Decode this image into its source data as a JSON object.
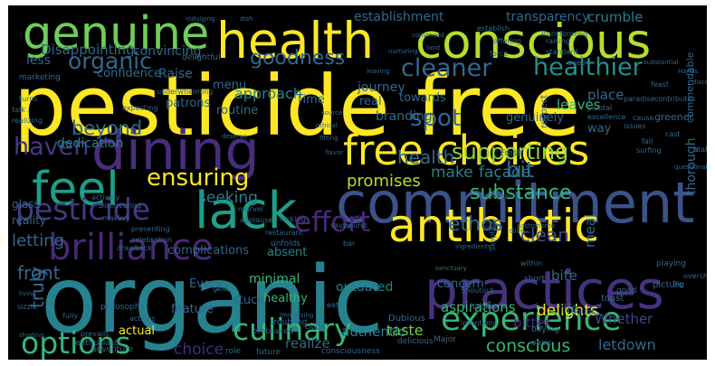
{
  "words": [
    {
      "t": "pesticide free",
      "c": "#fde725"
    },
    {
      "t": "organic",
      "c": "#26828e"
    },
    {
      "t": "commitment",
      "c": "#3b528b"
    },
    {
      "t": "health",
      "c": "#fde725"
    },
    {
      "t": "conscious",
      "c": "#b5de2b"
    },
    {
      "t": "dining",
      "c": "#472d7b"
    },
    {
      "t": "practices",
      "c": "#46327e"
    },
    {
      "t": "antibiotic",
      "c": "#fde725"
    },
    {
      "t": "lack",
      "c": "#1f9e89"
    },
    {
      "t": "free choices",
      "c": "#fde725"
    },
    {
      "t": "genuine",
      "c": "#6ece58"
    },
    {
      "t": "feel",
      "c": "#1f9e89"
    },
    {
      "t": "brilliance",
      "c": "#482878"
    },
    {
      "t": "experience",
      "c": "#35b779"
    },
    {
      "t": "culinary",
      "c": "#35b779"
    },
    {
      "t": "options",
      "c": "#35b779"
    },
    {
      "t": "pesticide",
      "c": "#443983"
    },
    {
      "t": "effort",
      "c": "#482878"
    },
    {
      "t": "ensuring",
      "c": "#fde725"
    },
    {
      "t": "cleaner",
      "c": "#31688e"
    },
    {
      "t": "healthier",
      "c": "#21918c"
    },
    {
      "t": "organic",
      "c": "#31688e"
    },
    {
      "t": "goodness",
      "c": "#31688e"
    },
    {
      "t": "beyond",
      "c": "#31688e"
    },
    {
      "t": "haven",
      "c": "#443983"
    },
    {
      "t": "spot",
      "c": "#31688e"
    },
    {
      "t": "supporting",
      "c": "#90d743"
    },
    {
      "t": "bit",
      "c": "#31688e"
    },
    {
      "t": "health",
      "c": "#31688e"
    },
    {
      "t": "substance",
      "c": "#35b779"
    },
    {
      "t": "seeking",
      "c": "#26828e"
    },
    {
      "t": "promises",
      "c": "#b5de2b"
    },
    {
      "t": "make",
      "c": "#26828e"
    },
    {
      "t": "façade",
      "c": "#26828e"
    },
    {
      "t": "ethos",
      "c": "#31688e"
    },
    {
      "t": "clean",
      "c": "#3e4989"
    },
    {
      "t": "truly",
      "c": "#31688e"
    },
    {
      "t": "front",
      "c": "#31688e"
    },
    {
      "t": "letting",
      "c": "#31688e"
    },
    {
      "t": "conscious",
      "c": "#35b779"
    },
    {
      "t": "letdown",
      "c": "#31688e"
    },
    {
      "t": "delights",
      "c": "#fde725"
    },
    {
      "t": "choice",
      "c": "#472d7b"
    },
    {
      "t": "aspirations",
      "c": "#35b779"
    },
    {
      "t": "bitter",
      "c": "#482878"
    },
    {
      "t": "taste",
      "c": "#6ece58"
    },
    {
      "t": "authentic",
      "c": "#26828e"
    },
    {
      "t": "realize",
      "c": "#31688e"
    },
    {
      "t": "Whether",
      "c": "#3e4989"
    },
    {
      "t": "meal",
      "c": "#31688e"
    },
    {
      "t": "bite",
      "c": "#31688e"
    },
    {
      "t": "outdated",
      "c": "#26828e"
    },
    {
      "t": "minimal",
      "c": "#35b779"
    },
    {
      "t": "approach",
      "c": "#26828e"
    },
    {
      "t": "dedication",
      "c": "#26828e"
    },
    {
      "t": "establishment",
      "c": "#31688e"
    },
    {
      "t": "transparency",
      "c": "#31688e"
    },
    {
      "t": "crumble",
      "c": "#26828e"
    },
    {
      "t": "Disappointing",
      "c": "#31688e"
    },
    {
      "t": "convincing",
      "c": "#31688e"
    },
    {
      "t": "Raise",
      "c": "#31688e"
    },
    {
      "t": "confidence",
      "c": "#31688e"
    },
    {
      "t": "less",
      "c": "#31688e"
    },
    {
      "t": "journey",
      "c": "#31688e"
    },
    {
      "t": "towards",
      "c": "#31688e"
    },
    {
      "t": "branding",
      "c": "#31688e"
    },
    {
      "t": "leaves",
      "c": "#35b779"
    },
    {
      "t": "menu",
      "c": "#31688e"
    },
    {
      "t": "patrons",
      "c": "#31688e"
    },
    {
      "t": "routine",
      "c": "#31688e"
    },
    {
      "t": "genuinely",
      "c": "#31688e"
    },
    {
      "t": "Time",
      "c": "#31688e"
    },
    {
      "t": "real",
      "c": "#31688e"
    },
    {
      "t": "place",
      "c": "#31688e"
    },
    {
      "t": "way",
      "c": "#31688e"
    },
    {
      "t": "stuck",
      "c": "#31688e"
    },
    {
      "t": "absent",
      "c": "#26828e"
    },
    {
      "t": "complications",
      "c": "#31688e"
    },
    {
      "t": "Every",
      "c": "#31688e"
    },
    {
      "t": "feature",
      "c": "#31688e"
    },
    {
      "t": "actual",
      "c": "#fde725"
    },
    {
      "t": "healthy",
      "c": "#35b779"
    },
    {
      "t": "concern",
      "c": "#31688e"
    },
    {
      "t": "life",
      "c": "#31688e"
    },
    {
      "t": "glass",
      "c": "#31688e"
    },
    {
      "t": "reality",
      "c": "#31688e"
    },
    {
      "t": "marketing",
      "c": "#31688e"
    },
    {
      "t": "delightful",
      "c": "#31688e"
    },
    {
      "t": "greener",
      "c": "#31688e"
    },
    {
      "t": "Fresh",
      "c": "#31688e"
    },
    {
      "t": "toast",
      "c": "#31688e"
    },
    {
      "t": "doubt",
      "c": "#31688e"
    },
    {
      "t": "good",
      "c": "#31688e"
    },
    {
      "t": "picture",
      "c": "#31688e"
    },
    {
      "t": "playing",
      "c": "#31688e"
    },
    {
      "t": "oasis",
      "c": "#31688e"
    },
    {
      "t": "buying",
      "c": "#31688e"
    },
    {
      "t": "Dubious",
      "c": "#31688e"
    },
    {
      "t": "intentions",
      "c": "#31688e"
    },
    {
      "t": "habits",
      "c": "#31688e"
    },
    {
      "t": "Major",
      "c": "#31688e"
    },
    {
      "t": "delicious",
      "c": "#31688e"
    },
    {
      "t": "consciousness",
      "c": "#31688e"
    },
    {
      "t": "cloud",
      "c": "#31688e"
    },
    {
      "t": "eat",
      "c": "#31688e"
    },
    {
      "t": "troubling",
      "c": "#31688e"
    },
    {
      "t": "embraced",
      "c": "#31688e"
    },
    {
      "t": "future",
      "c": "#31688e"
    },
    {
      "t": "role",
      "c": "#31688e"
    },
    {
      "t": "adventure",
      "c": "#31688e"
    },
    {
      "t": "enthusiasts",
      "c": "#31688e"
    },
    {
      "t": "prevails",
      "c": "#31688e"
    },
    {
      "t": "actions",
      "c": "#31688e"
    },
    {
      "t": "philosophy",
      "c": "#31688e"
    },
    {
      "t": "fully",
      "c": "#31688e"
    },
    {
      "t": "gold",
      "c": "#31688e"
    },
    {
      "t": "Shoutout",
      "c": "#31688e"
    },
    {
      "t": "overshadow",
      "c": "#31688e"
    },
    {
      "t": "Big",
      "c": "#31688e"
    },
    {
      "t": "savvy",
      "c": "#31688e"
    },
    {
      "t": "Skeptical",
      "c": "#31688e"
    },
    {
      "t": "within",
      "c": "#31688e"
    },
    {
      "t": "short",
      "c": "#31688e"
    },
    {
      "t": "dive",
      "c": "#31688e"
    },
    {
      "t": "solid",
      "c": "#31688e"
    },
    {
      "t": "sound",
      "c": "#31688e"
    },
    {
      "t": "bar",
      "c": "#31688e"
    },
    {
      "t": "restaurant",
      "c": "#31688e"
    },
    {
      "t": "unfolds",
      "c": "#31688e"
    },
    {
      "t": "drawback",
      "c": "#31688e"
    },
    {
      "t": "making",
      "c": "#31688e"
    },
    {
      "t": "Discovering",
      "c": "#31688e"
    },
    {
      "t": "actively",
      "c": "#31688e"
    },
    {
      "t": "presenting",
      "c": "#31688e"
    },
    {
      "t": "celebration",
      "c": "#31688e"
    },
    {
      "t": "applause",
      "c": "#31688e"
    },
    {
      "t": "marvel",
      "c": "#31688e"
    },
    {
      "t": "lacking",
      "c": "#31688e"
    },
    {
      "t": "issues",
      "c": "#31688e"
    },
    {
      "t": "paradise",
      "c": "#31688e"
    },
    {
      "t": "cause",
      "c": "#31688e"
    },
    {
      "t": "cast",
      "c": "#31688e"
    },
    {
      "t": "fall",
      "c": "#31688e"
    },
    {
      "t": "surfing",
      "c": "#31688e"
    },
    {
      "t": "statement",
      "c": "#31688e"
    },
    {
      "t": "excellence",
      "c": "#31688e"
    },
    {
      "t": "pivotal",
      "c": "#31688e"
    },
    {
      "t": "deep",
      "c": "#31688e"
    },
    {
      "t": "standard",
      "c": "#31688e"
    },
    {
      "t": "raising",
      "c": "#31688e"
    },
    {
      "t": "Transforming",
      "c": "#31688e"
    },
    {
      "t": "establish",
      "c": "#31688e"
    },
    {
      "t": "force",
      "c": "#31688e"
    },
    {
      "t": "offering",
      "c": "#31688e"
    },
    {
      "t": "dish",
      "c": "#31688e"
    },
    {
      "t": "indulging",
      "c": "#31688e"
    },
    {
      "t": "underwhelming",
      "c": "#31688e"
    },
    {
      "t": "expecting",
      "c": "#31688e"
    },
    {
      "t": "contributes",
      "c": "#31688e"
    },
    {
      "t": "questionable",
      "c": "#31688e"
    },
    {
      "t": "gastronomic",
      "c": "#31688e"
    },
    {
      "t": "ingredients",
      "c": "#31688e"
    },
    {
      "t": "sanctuary",
      "c": "#31688e"
    },
    {
      "t": "revolution",
      "c": "#31688e"
    },
    {
      "t": "Immersing",
      "c": "#31688e"
    },
    {
      "t": "thorough",
      "c": "#31688e"
    },
    {
      "t": "commendable",
      "c": "#31688e"
    },
    {
      "t": "respect",
      "c": "#31688e"
    },
    {
      "t": "living",
      "c": "#31688e"
    },
    {
      "t": "shading",
      "c": "#31688e"
    },
    {
      "t": "sizzle",
      "c": "#31688e"
    },
    {
      "t": "talk",
      "c": "#31688e"
    },
    {
      "t": "realizing",
      "c": "#31688e"
    },
    {
      "t": "turns",
      "c": "#31688e"
    },
    {
      "t": "substantial",
      "c": "#31688e"
    },
    {
      "t": "Hands",
      "c": "#31688e"
    },
    {
      "t": "discovering",
      "c": "#31688e"
    },
    {
      "t": "feast",
      "c": "#31688e"
    },
    {
      "t": "convinced",
      "c": "#31688e"
    },
    {
      "t": "source",
      "c": "#31688e"
    },
    {
      "t": "ethical",
      "c": "#31688e"
    },
    {
      "t": "fitting",
      "c": "#31688e"
    },
    {
      "t": "flavor",
      "c": "#31688e"
    },
    {
      "t": "land",
      "c": "#31688e"
    },
    {
      "t": "nurturing",
      "c": "#31688e"
    },
    {
      "t": "leaving",
      "c": "#31688e"
    },
    {
      "t": "deserve",
      "c": "#31688e"
    }
  ]
}
